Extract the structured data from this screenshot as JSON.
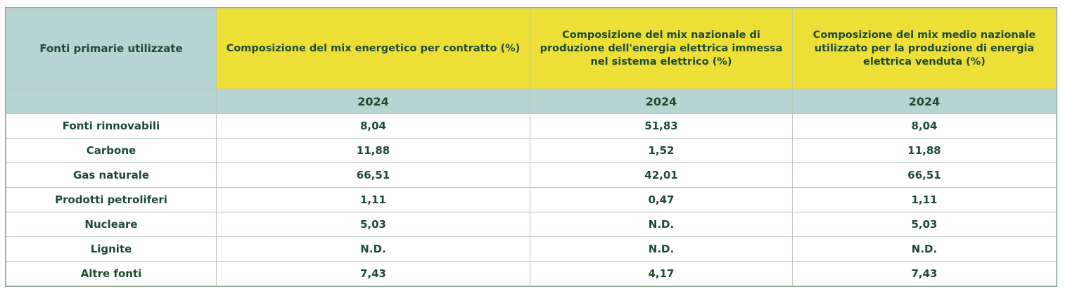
{
  "table": {
    "header": {
      "source_label": "Fonti primarie utilizzate",
      "col1": "Composizione del mix energetico per contratto (%)",
      "col2": "Composizione del mix nazionale di produzione dell'energia elettrica immessa nel sistema elettrico (%)",
      "col3": "Composizione del mix medio nazionale utilizzato per la produzione di energia elettrica venduta (%)"
    },
    "years": {
      "blank": "",
      "col1": "2024",
      "col2": "2024",
      "col3": "2024"
    },
    "rows": [
      {
        "source": "Fonti rinnovabili",
        "contratto": "8,04",
        "nazionale": "51,83",
        "medio": "8,04"
      },
      {
        "source": "Carbone",
        "contratto": "11,88",
        "nazionale": "1,52",
        "medio": "11,88"
      },
      {
        "source": "Gas naturale",
        "contratto": "66,51",
        "nazionale": "42,01",
        "medio": "66,51"
      },
      {
        "source": "Prodotti petroliferi",
        "contratto": "1,11",
        "nazionale": "0,47",
        "medio": "1,11"
      },
      {
        "source": "Nucleare",
        "contratto": "5,03",
        "nazionale": "N.D.",
        "medio": "5,03"
      },
      {
        "source": "Lignite",
        "contratto": "N.D.",
        "nazionale": "N.D.",
        "medio": "N.D."
      },
      {
        "source": "Altre fonti",
        "contratto": "7,43",
        "nazionale": "4,17",
        "medio": "7,43"
      }
    ]
  }
}
